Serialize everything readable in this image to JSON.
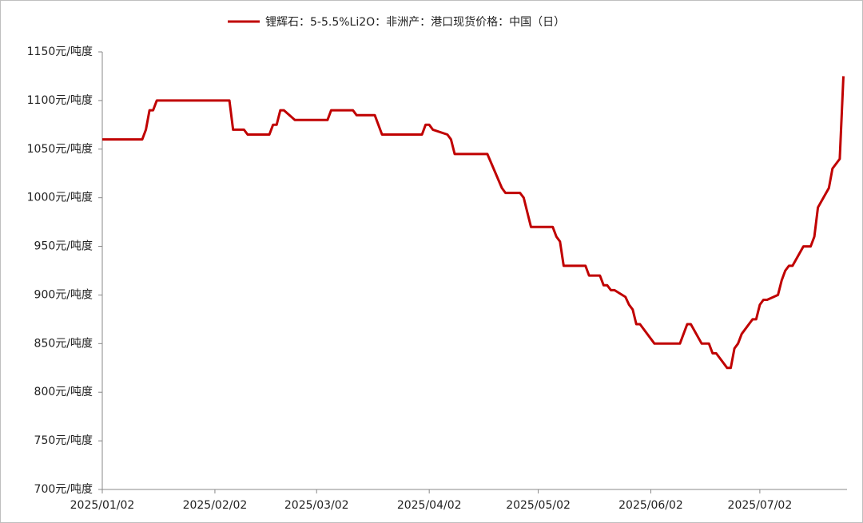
{
  "chart_data": {
    "type": "line",
    "x": [
      "2025/01/02",
      "2025/01/13",
      "2025/01/14",
      "2025/01/15",
      "2025/01/16",
      "2025/01/17",
      "2025/02/06",
      "2025/02/07",
      "2025/02/10",
      "2025/02/11",
      "2025/02/17",
      "2025/02/18",
      "2025/02/19",
      "2025/02/20",
      "2025/02/21",
      "2025/02/24",
      "2025/03/05",
      "2025/03/06",
      "2025/03/12",
      "2025/03/13",
      "2025/03/18",
      "2025/03/20",
      "2025/03/31",
      "2025/04/01",
      "2025/04/02",
      "2025/04/03",
      "2025/04/07",
      "2025/04/08",
      "2025/04/09",
      "2025/04/18",
      "2025/04/22",
      "2025/04/23",
      "2025/04/27",
      "2025/04/28",
      "2025/04/29",
      "2025/04/30",
      "2025/05/06",
      "2025/05/07",
      "2025/05/08",
      "2025/05/09",
      "2025/05/15",
      "2025/05/16",
      "2025/05/19",
      "2025/05/20",
      "2025/05/21",
      "2025/05/22",
      "2025/05/23",
      "2025/05/26",
      "2025/05/27",
      "2025/05/28",
      "2025/05/29",
      "2025/05/30",
      "2025/06/03",
      "2025/06/10",
      "2025/06/12",
      "2025/06/13",
      "2025/06/16",
      "2025/06/18",
      "2025/06/19",
      "2025/06/20",
      "2025/06/23",
      "2025/06/24",
      "2025/06/25",
      "2025/06/26",
      "2025/06/27",
      "2025/06/30",
      "2025/07/01",
      "2025/07/02",
      "2025/07/03",
      "2025/07/04",
      "2025/07/07",
      "2025/07/08",
      "2025/07/09",
      "2025/07/10",
      "2025/07/11",
      "2025/07/14",
      "2025/07/16",
      "2025/07/17",
      "2025/07/18",
      "2025/07/21",
      "2025/07/22",
      "2025/07/24",
      "2025/07/25"
    ],
    "series": [
      {
        "name": "锂辉石：5-5.5%Li2O：非洲产：港口现货价格：中国（日）",
        "color": "#c00000",
        "values": [
          1060,
          1060,
          1070,
          1090,
          1090,
          1100,
          1100,
          1070,
          1070,
          1065,
          1065,
          1075,
          1075,
          1090,
          1090,
          1080,
          1080,
          1090,
          1090,
          1085,
          1085,
          1065,
          1065,
          1075,
          1075,
          1070,
          1065,
          1060,
          1045,
          1045,
          1010,
          1005,
          1005,
          1000,
          985,
          970,
          970,
          960,
          955,
          930,
          930,
          920,
          920,
          910,
          910,
          905,
          905,
          898,
          890,
          885,
          870,
          870,
          850,
          850,
          870,
          870,
          850,
          850,
          840,
          840,
          825,
          825,
          845,
          850,
          860,
          875,
          875,
          890,
          895,
          895,
          900,
          915,
          925,
          930,
          930,
          950,
          950,
          960,
          990,
          1010,
          1030,
          1040,
          1125
        ]
      }
    ],
    "xlim": [
      "2025/01/02",
      "2025/07/26"
    ],
    "xticks": [
      "2025/01/02",
      "2025/02/02",
      "2025/03/02",
      "2025/04/02",
      "2025/05/02",
      "2025/06/02",
      "2025/07/02"
    ],
    "ylim": [
      700,
      1150
    ],
    "yticks": [
      {
        "value": 700,
        "label": "700元/吨度"
      },
      {
        "value": 750,
        "label": "750元/吨度"
      },
      {
        "value": 800,
        "label": "800元/吨度"
      },
      {
        "value": 850,
        "label": "850元/吨度"
      },
      {
        "value": 900,
        "label": "900元/吨度"
      },
      {
        "value": 950,
        "label": "950元/吨度"
      },
      {
        "value": 1000,
        "label": "1000元/吨度"
      },
      {
        "value": 1050,
        "label": "1050元/吨度"
      },
      {
        "value": 1100,
        "label": "1100元/吨度"
      },
      {
        "value": 1150,
        "label": "1150元/吨度"
      }
    ],
    "grid": false,
    "legend": "top"
  }
}
